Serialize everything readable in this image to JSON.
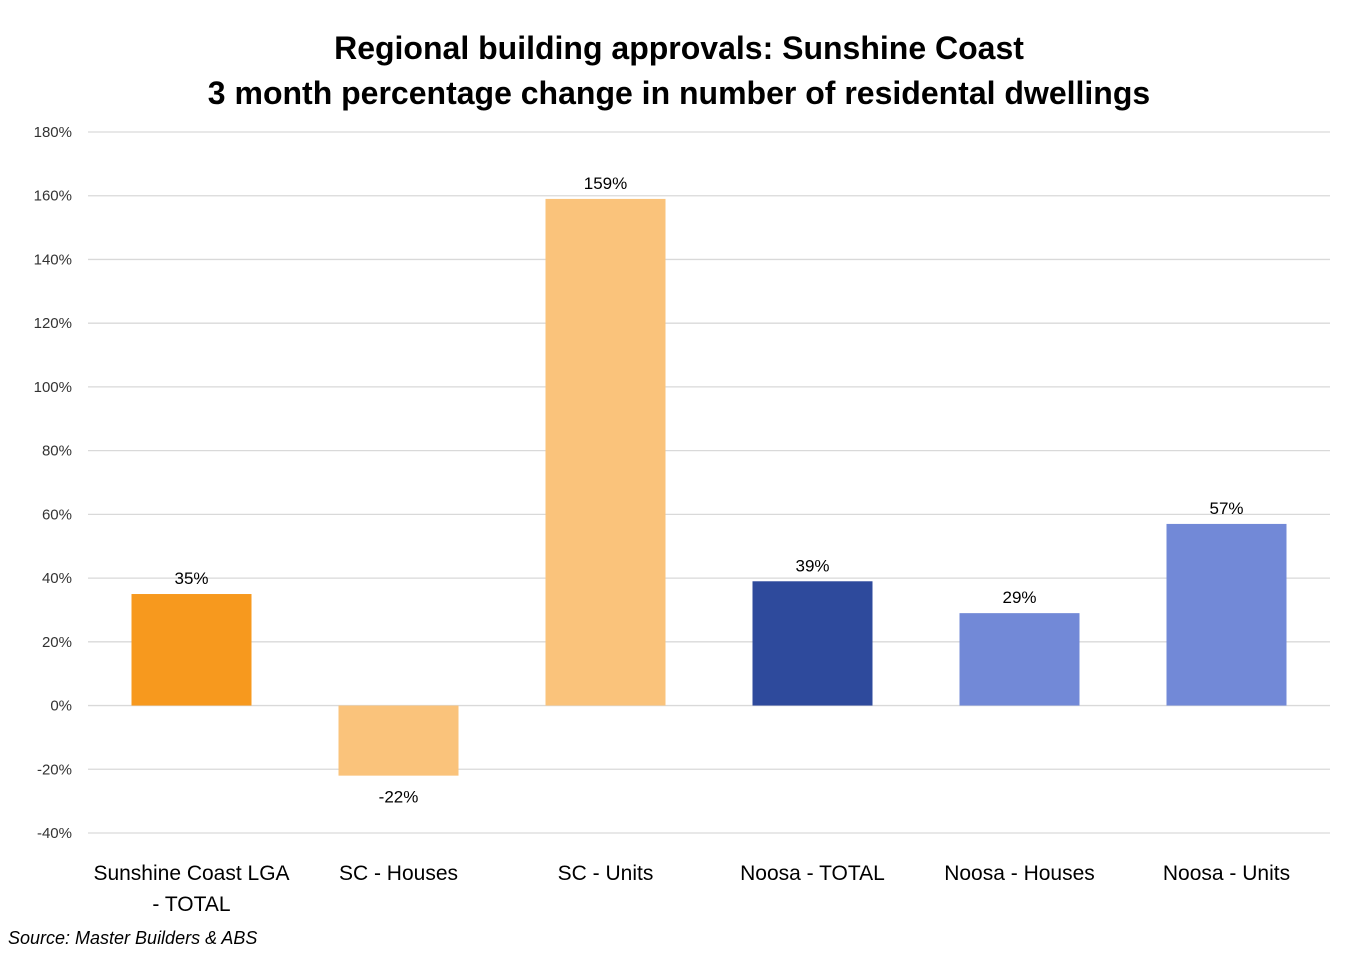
{
  "chart_data": {
    "type": "bar",
    "title": "Regional building approvals: Sunshine Coast",
    "subtitle": "3 month percentage change in number of residental dwellings",
    "categories": [
      [
        "Sunshine Coast LGA",
        "- TOTAL"
      ],
      [
        "SC - Houses"
      ],
      [
        "SC - Units"
      ],
      [
        "Noosa - TOTAL"
      ],
      [
        "Noosa - Houses"
      ],
      [
        "Noosa - Units"
      ]
    ],
    "values": [
      35,
      -22,
      159,
      39,
      29,
      57
    ],
    "data_labels": [
      "35%",
      "-22%",
      "159%",
      "39%",
      "29%",
      "57%"
    ],
    "bar_colors": [
      "#F7991E",
      "#FAC37B",
      "#FAC37B",
      "#2E4A9C",
      "#7289D7",
      "#7289D7"
    ],
    "ylim": [
      -40,
      180
    ],
    "yticks": [
      -40,
      -20,
      0,
      20,
      40,
      60,
      80,
      100,
      120,
      140,
      160,
      180
    ],
    "ytick_labels": [
      "-40%",
      "-20%",
      "0%",
      "20%",
      "40%",
      "60%",
      "80%",
      "100%",
      "120%",
      "140%",
      "160%",
      "180%"
    ],
    "xlabel": "",
    "ylabel": "",
    "grid": true,
    "gridline_color": "#D9D9D9"
  },
  "source": "Source: Master Builders & ABS"
}
